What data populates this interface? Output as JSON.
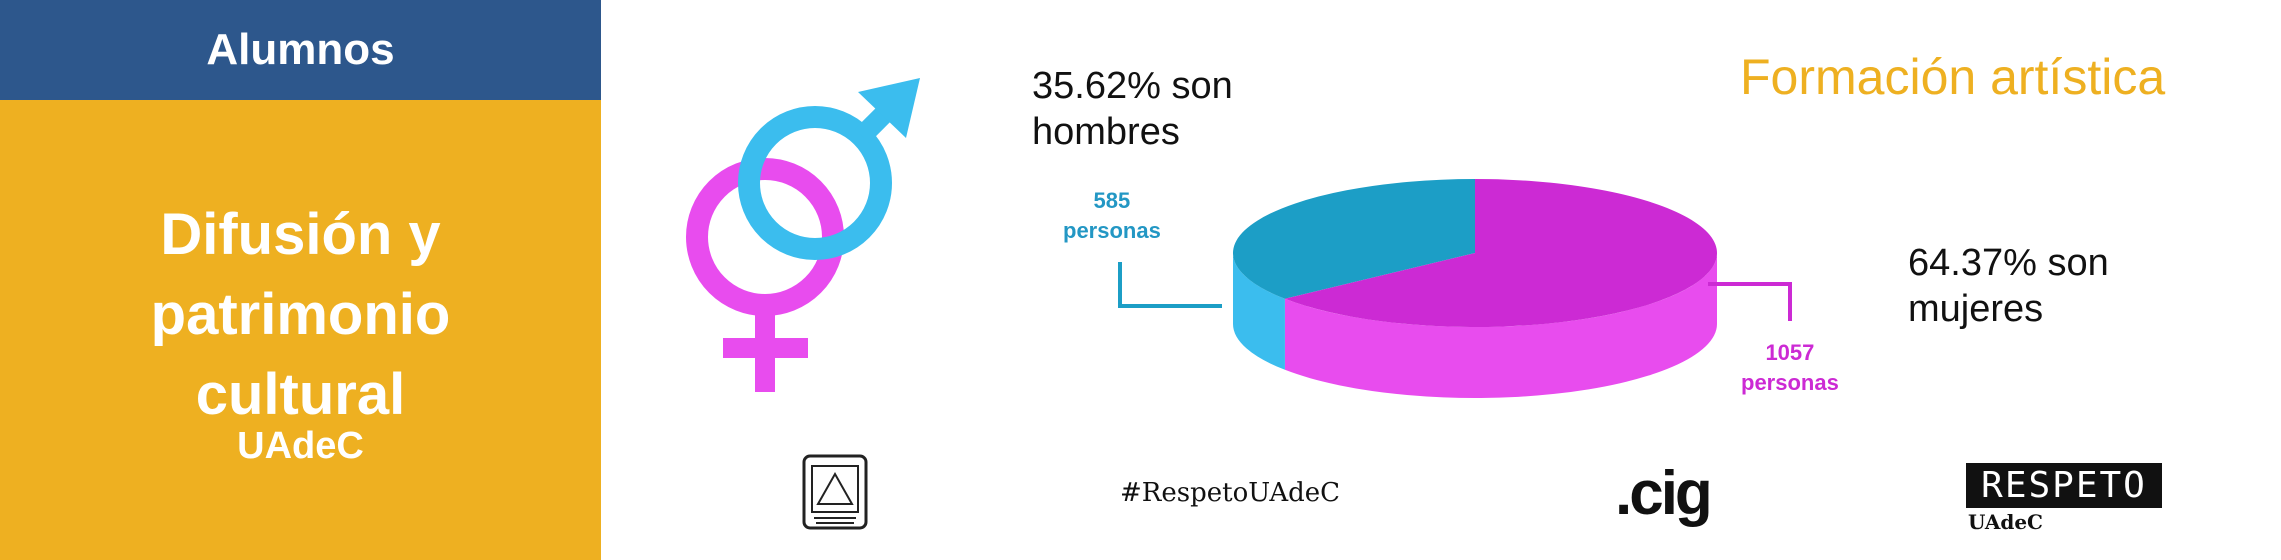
{
  "sidebar": {
    "header": "Alumnos",
    "title_lines": [
      "Difusión y",
      "patrimonio",
      "cultural"
    ],
    "subtitle": "UAdeC"
  },
  "title": "Formación artística",
  "stats": {
    "men": {
      "line1": "35.62% son",
      "line2": "hombres"
    },
    "women": {
      "line1": "64.37% son",
      "line2": "mujeres"
    }
  },
  "chart_data": {
    "type": "pie",
    "title": "Formación artística",
    "slices": [
      {
        "label": "son hombres",
        "percent": 35.62,
        "count": 585,
        "count_label": [
          "585",
          "personas"
        ],
        "color": "#1c9ec6"
      },
      {
        "label": "son mujeres",
        "percent": 64.37,
        "count": 1057,
        "count_label": [
          "1057",
          "personas"
        ],
        "color": "#cc2ad4"
      }
    ],
    "colors": {
      "men_side": "#3bbdee",
      "women_side": "#e84cee",
      "men_text": "#2397c4",
      "women_text": "#cc2ad4"
    }
  },
  "icons": {
    "gender": "male-female-symbols-icon",
    "seal": "university-seal-icon"
  },
  "footer": {
    "hashtag": "#RespetoUAdeC",
    "cig": ".cig",
    "respeto": "RESPETO",
    "respeto_sub": "UAdeC"
  }
}
